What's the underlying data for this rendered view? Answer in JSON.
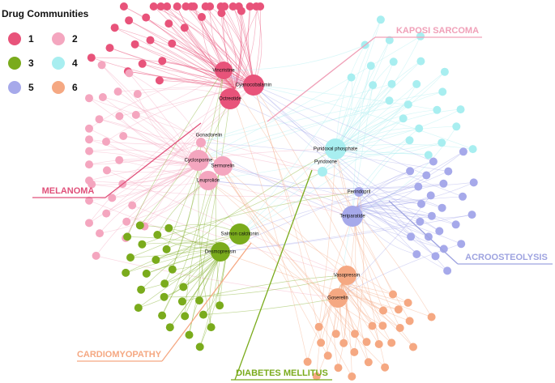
{
  "legend": {
    "title": "Drug Communities",
    "items": [
      {
        "label": "1",
        "color": "#e8537a"
      },
      {
        "label": "2",
        "color": "#f4a6bf"
      },
      {
        "label": "3",
        "color": "#7aab1c"
      },
      {
        "label": "4",
        "color": "#a8eef0"
      },
      {
        "label": "5",
        "color": "#a6a9ea"
      },
      {
        "label": "6",
        "color": "#f5a882"
      }
    ]
  },
  "nodes": [
    {
      "label": "Vincristine",
      "color": "#e8537a"
    },
    {
      "label": "Cyanocobalamin",
      "color": "#e8537a"
    },
    {
      "label": "Octreotide",
      "color": "#e8537a"
    },
    {
      "label": "Gonadorelin",
      "color": "#f4a6bf"
    },
    {
      "label": "Cyclosporine",
      "color": "#f4a6bf"
    },
    {
      "label": "Sermorelin",
      "color": "#f4a6bf"
    },
    {
      "label": "Leuprolide",
      "color": "#f4a6bf"
    },
    {
      "label": "Pyridoxal phosphate",
      "color": "#a8eef0"
    },
    {
      "label": "Pyridoxine",
      "color": "#a8eef0"
    },
    {
      "label": "Perindopril",
      "color": "#a6a9ea"
    },
    {
      "label": "Teriparatide",
      "color": "#a6a9ea"
    },
    {
      "label": "Salmon calcitonin",
      "color": "#7aab1c"
    },
    {
      "label": "Desmopressin",
      "color": "#7aab1c"
    },
    {
      "label": "Vasopressin",
      "color": "#f5a882"
    },
    {
      "label": "Goserelin",
      "color": "#f5a882"
    }
  ],
  "diseases": [
    {
      "label": "KAPOSI SARCOMA",
      "color": "#f0a0b8"
    },
    {
      "label": "MELANOMA",
      "color": "#e0507a"
    },
    {
      "label": "ACROOSTEOLYSIS",
      "color": "#9ea3e0"
    },
    {
      "label": "CARDIOMYOPATHY",
      "color": "#f5a882"
    },
    {
      "label": "DIABETES MELLITUS",
      "color": "#7aab1c"
    }
  ]
}
